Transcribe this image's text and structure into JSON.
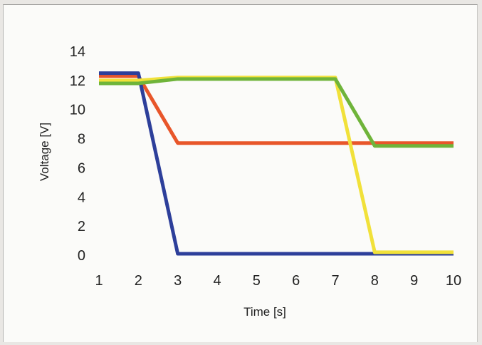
{
  "chart_data": {
    "type": "line",
    "title": "",
    "xlabel": "Time [s]",
    "ylabel": "Voltage [V]",
    "x": [
      1,
      2,
      3,
      4,
      5,
      6,
      7,
      8,
      9,
      10
    ],
    "xlim": [
      1,
      10
    ],
    "ylim": [
      0,
      14
    ],
    "yticks": [
      0,
      2,
      4,
      6,
      8,
      10,
      12,
      14
    ],
    "xticks": [
      1,
      2,
      3,
      4,
      5,
      6,
      7,
      8,
      9,
      10
    ],
    "grid": false,
    "legend": "none",
    "series": [
      {
        "color": "#e8562a",
        "values": [
          12.3,
          12.3,
          7.7,
          7.7,
          7.7,
          7.7,
          7.7,
          7.7,
          7.7,
          7.7
        ]
      },
      {
        "color": "#2d3f9a",
        "values": [
          12.5,
          12.5,
          0.1,
          0.1,
          0.1,
          0.1,
          0.1,
          0.1,
          0.1,
          0.1
        ]
      },
      {
        "color": "#f1e13a",
        "values": [
          12.0,
          12.0,
          12.2,
          12.2,
          12.2,
          12.2,
          12.2,
          0.2,
          0.2,
          0.2
        ]
      },
      {
        "color": "#6fb43a",
        "values": [
          11.8,
          11.8,
          12.1,
          12.1,
          12.1,
          12.1,
          12.1,
          7.5,
          7.5,
          7.5
        ]
      }
    ]
  }
}
